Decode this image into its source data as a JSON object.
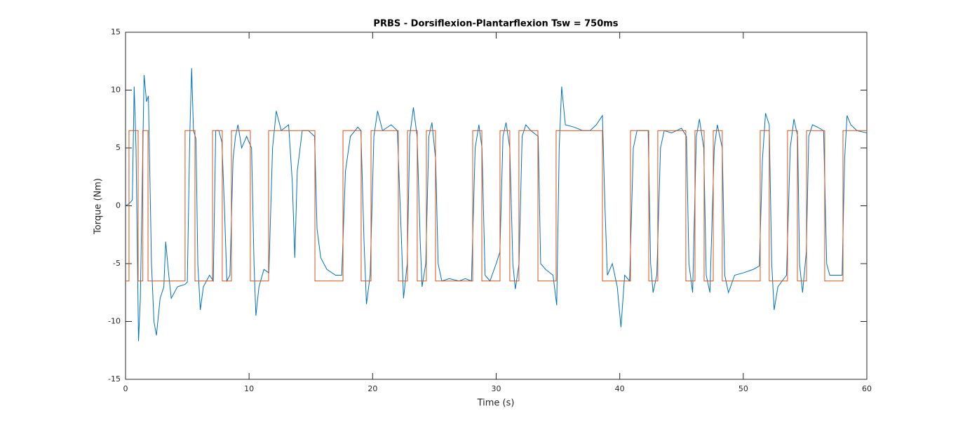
{
  "chart_data": {
    "type": "line",
    "title": "PRBS - Dorsiflexion-Plantarflexion Tsw = 750ms",
    "xlabel": "Time (s)",
    "ylabel": "Torque (Nm)",
    "xlim": [
      0,
      60
    ],
    "ylim": [
      -15,
      15
    ],
    "xticks": [
      0,
      10,
      20,
      30,
      40,
      50,
      60
    ],
    "yticks": [
      -15,
      -10,
      -5,
      0,
      5,
      10,
      15
    ],
    "grid": false,
    "series": [
      {
        "color": "#0072BD",
        "x": [
          0,
          0.3,
          0.55,
          0.7,
          0.85,
          1.05,
          1.2,
          1.5,
          1.7,
          1.85,
          2.1,
          2.3,
          2.5,
          2.8,
          3.1,
          3.25,
          3.5,
          3.7,
          4.2,
          4.8,
          5.0,
          5.2,
          5.35,
          5.5,
          5.7,
          5.85,
          6.05,
          6.3,
          6.8,
          7.1,
          7.3,
          7.55,
          7.8,
          8.0,
          8.2,
          8.45,
          8.7,
          8.9,
          9.1,
          9.4,
          9.8,
          10.2,
          10.4,
          10.55,
          10.8,
          11.2,
          11.6,
          11.9,
          12.2,
          12.6,
          13.2,
          13.5,
          13.7,
          13.9,
          14.3,
          14.8,
          15.3,
          15.5,
          15.8,
          16.3,
          17.0,
          17.5,
          17.8,
          18.2,
          18.8,
          19.05,
          19.3,
          19.5,
          19.8,
          20.1,
          20.4,
          20.8,
          21.5,
          22.0,
          22.3,
          22.5,
          22.8,
          23.0,
          23.3,
          23.6,
          23.85,
          24.0,
          24.3,
          24.55,
          24.8,
          25.1,
          25.3,
          25.6,
          26.2,
          27.0,
          27.5,
          28.0,
          28.3,
          28.6,
          28.85,
          29.1,
          29.5,
          30.0,
          30.3,
          30.55,
          30.8,
          31.1,
          31.35,
          31.55,
          31.85,
          32.1,
          32.4,
          32.8,
          33.4,
          33.6,
          34.0,
          34.6,
          34.9,
          35.1,
          35.3,
          35.6,
          36.3,
          37.0,
          37.6,
          38.1,
          38.6,
          38.8,
          39.0,
          39.4,
          39.8,
          40.1,
          40.4,
          40.8,
          41.1,
          41.4,
          41.8,
          42.3,
          42.5,
          42.7,
          43.0,
          43.3,
          43.6,
          44.2,
          45.0,
          45.4,
          45.6,
          45.9,
          46.2,
          46.45,
          46.8,
          47.0,
          47.3,
          47.65,
          47.9,
          48.3,
          48.5,
          48.8,
          49.3,
          50.0,
          50.8,
          51.3,
          51.55,
          51.8,
          52.1,
          52.3,
          52.5,
          52.8,
          53.5,
          53.8,
          54.1,
          54.4,
          54.55,
          54.8,
          55.1,
          55.3,
          55.6,
          56.0,
          56.5,
          56.75,
          57.0,
          57.5,
          58.0,
          58.2,
          58.4,
          58.7,
          59.2,
          60
        ],
        "values": [
          0,
          0.2,
          0.5,
          10.3,
          5,
          -11.7,
          -8,
          11.3,
          9,
          9.5,
          -5,
          -10,
          -11.2,
          -8,
          -7,
          -3.1,
          -6,
          -8,
          -7,
          -6.8,
          -6.6,
          6,
          11.9,
          6.5,
          5.8,
          -5,
          -9,
          -7,
          -6,
          -6.5,
          6.5,
          6.5,
          5.5,
          0,
          -6.5,
          -6,
          4,
          6,
          7,
          5,
          6,
          5,
          -5,
          -9.5,
          -7,
          -5.5,
          -5.8,
          5,
          8.2,
          6.5,
          7,
          2,
          -4.5,
          3,
          6.5,
          6.5,
          6,
          -2,
          -4.5,
          -5.5,
          -6,
          -6,
          3,
          6,
          6.8,
          6.5,
          -3,
          -8.5,
          -6,
          6,
          8.2,
          6.5,
          7,
          6.5,
          -2,
          -8,
          -5,
          6,
          8.5,
          6,
          -3,
          -7,
          -5,
          6,
          7.2,
          4,
          -5,
          -6.5,
          -6.3,
          -6.5,
          -6.3,
          -6.5,
          5,
          7,
          5,
          -6,
          -6.5,
          -5,
          -4,
          6,
          7.2,
          5,
          -5,
          -7.2,
          -5,
          6,
          7,
          6.5,
          6,
          -5,
          -5.5,
          -6,
          -8.6,
          5,
          10.3,
          7,
          6.8,
          6.5,
          6.5,
          7,
          7.8,
          0,
          -6,
          -5,
          -7,
          -10.5,
          -6,
          -6.5,
          5,
          6.5,
          6.5,
          6.5,
          -5,
          -7.5,
          -6,
          5,
          6.5,
          6.3,
          6.7,
          6,
          -5,
          -7.5,
          6,
          7.5,
          5,
          -6,
          -7.5,
          5,
          7,
          5,
          -6,
          -7.5,
          -6,
          -5.8,
          -5.5,
          -5.2,
          4,
          8,
          7,
          -5,
          -9,
          -7,
          -6,
          5,
          7.5,
          6,
          -5,
          -7.5,
          -4,
          6,
          7,
          6.8,
          6.5,
          -5,
          -6,
          -6,
          -6,
          4,
          7.8,
          7,
          6.5,
          6.3
        ]
      },
      {
        "color": "#D95319",
        "x": [
          0,
          0.28,
          0.28,
          1.02,
          1.02,
          1.4,
          1.4,
          1.82,
          1.82,
          4.82,
          4.82,
          5.62,
          5.62,
          7.04,
          7.04,
          7.83,
          7.83,
          8.57,
          8.57,
          10.1,
          10.1,
          11.58,
          11.58,
          15.33,
          15.33,
          17.6,
          17.6,
          19.07,
          19.07,
          19.87,
          19.87,
          22.08,
          22.08,
          22.82,
          22.82,
          23.61,
          23.61,
          24.35,
          24.35,
          25.09,
          25.09,
          28.1,
          28.1,
          28.84,
          28.84,
          30.31,
          30.31,
          31.1,
          31.1,
          31.84,
          31.84,
          33.38,
          33.38,
          34.85,
          34.85,
          38.6,
          38.6,
          40.87,
          40.87,
          42.35,
          42.35,
          43.08,
          43.08,
          45.35,
          45.35,
          46.09,
          46.09,
          46.83,
          46.83,
          47.57,
          47.57,
          48.3,
          48.3,
          51.37,
          51.37,
          52.1,
          52.1,
          53.58,
          53.58,
          54.38,
          54.38,
          55.12,
          55.12,
          56.59,
          56.59,
          58.07,
          58.07,
          60
        ],
        "values": [
          -6.5,
          -6.5,
          6.5,
          6.5,
          -6.5,
          -6.5,
          6.5,
          6.5,
          -6.5,
          -6.5,
          6.5,
          6.5,
          -6.5,
          -6.5,
          6.5,
          6.5,
          -6.5,
          -6.5,
          6.5,
          6.5,
          -6.5,
          -6.5,
          6.5,
          6.5,
          -6.5,
          -6.5,
          6.5,
          6.5,
          -6.5,
          -6.5,
          6.5,
          6.5,
          -6.5,
          -6.5,
          6.5,
          6.5,
          -6.5,
          -6.5,
          6.5,
          6.5,
          -6.5,
          -6.5,
          6.5,
          6.5,
          -6.5,
          -6.5,
          6.5,
          6.5,
          -6.5,
          -6.5,
          6.5,
          6.5,
          -6.5,
          -6.5,
          6.5,
          6.5,
          -6.5,
          -6.5,
          6.5,
          6.5,
          -6.5,
          -6.5,
          6.5,
          6.5,
          -6.5,
          -6.5,
          6.5,
          6.5,
          -6.5,
          -6.5,
          6.5,
          6.5,
          -6.5,
          -6.5,
          6.5,
          6.5,
          -6.5,
          -6.5,
          6.5,
          6.5,
          -6.5,
          -6.5,
          6.5,
          6.5,
          -6.5,
          -6.5,
          6.5,
          6.5
        ]
      }
    ]
  }
}
